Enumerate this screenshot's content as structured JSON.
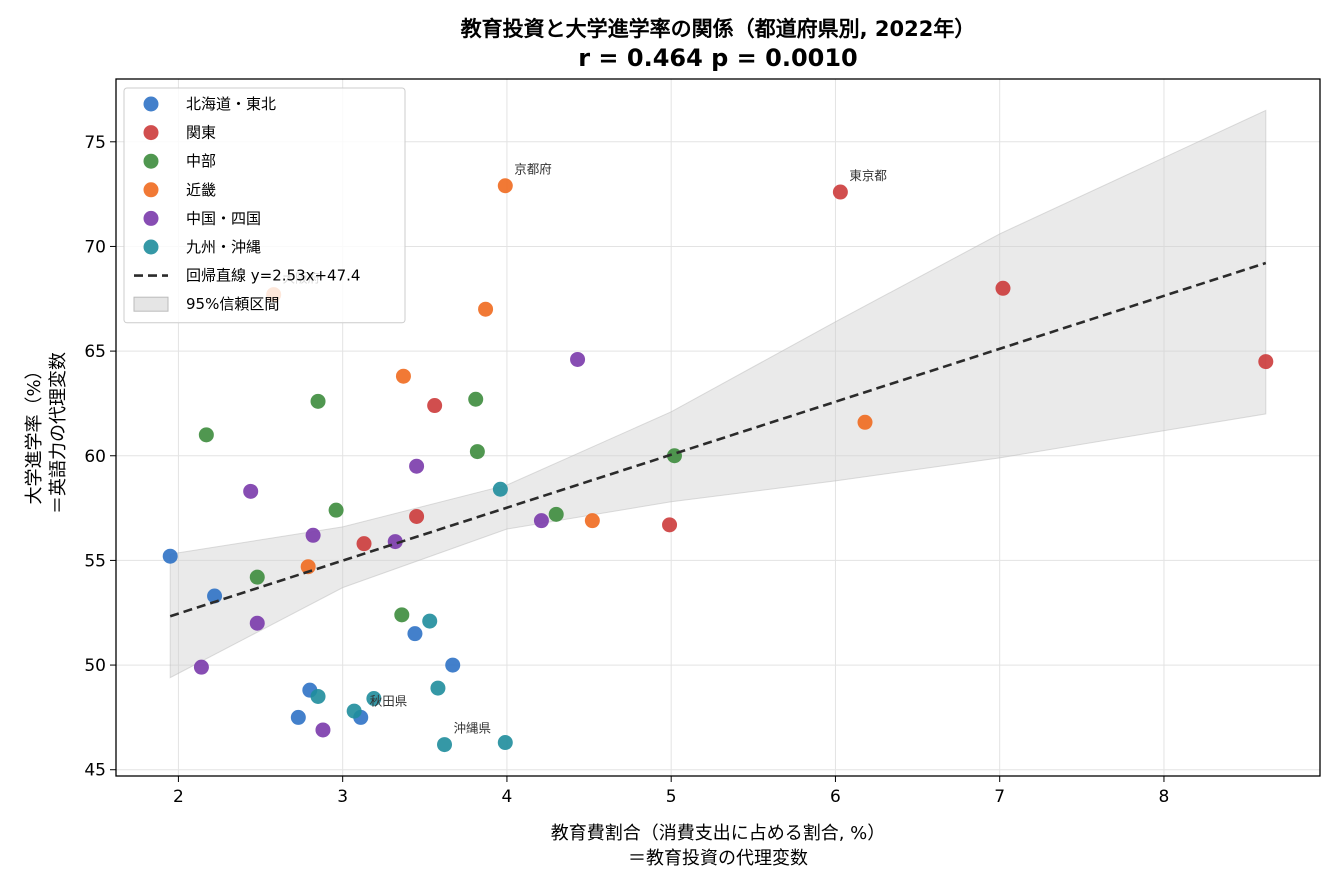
{
  "chart_data": {
    "type": "scatter",
    "title": "教育投資と大学進学率の関係（都道府県別, 2022年）",
    "subtitle": "r = 0.464  p = 0.0010",
    "xlabel": [
      "教育費割合（消費支出に占める割合, %）",
      "＝教育投資の代理変数"
    ],
    "ylabel": [
      "大学進学率（%）",
      "＝英語力の代理変数"
    ],
    "xlim": [
      1.62,
      8.95
    ],
    "ylim": [
      44.7,
      78.0
    ],
    "x_ticks": [
      2,
      3,
      4,
      5,
      6,
      7,
      8
    ],
    "y_ticks": [
      45,
      50,
      55,
      60,
      65,
      70,
      75
    ],
    "grid": true,
    "legend_position": "top-left",
    "series": [
      {
        "name": "北海道・東北",
        "color": "#2f72c5",
        "points": [
          [
            1.95,
            55.2
          ],
          [
            2.22,
            53.3
          ],
          [
            2.73,
            47.5
          ],
          [
            2.8,
            48.8
          ],
          [
            3.11,
            47.5
          ],
          [
            3.44,
            51.5
          ],
          [
            3.67,
            50.0
          ]
        ]
      },
      {
        "name": "関東",
        "color": "#cc3b3b",
        "points": [
          [
            3.13,
            55.8
          ],
          [
            3.45,
            57.1
          ],
          [
            3.56,
            62.4
          ],
          [
            4.99,
            56.7
          ],
          [
            6.03,
            72.6
          ],
          [
            7.02,
            68.0
          ],
          [
            8.62,
            64.5
          ]
        ]
      },
      {
        "name": "中部",
        "color": "#3d8c3d",
        "points": [
          [
            2.17,
            61.0
          ],
          [
            2.48,
            54.2
          ],
          [
            2.85,
            62.6
          ],
          [
            2.96,
            57.4
          ],
          [
            3.36,
            52.4
          ],
          [
            3.81,
            62.7
          ],
          [
            3.82,
            60.2
          ],
          [
            4.3,
            57.2
          ],
          [
            5.02,
            60.0
          ]
        ]
      },
      {
        "name": "近畿",
        "color": "#ef6a1f",
        "points": [
          [
            2.58,
            67.7
          ],
          [
            2.79,
            54.7
          ],
          [
            3.37,
            63.8
          ],
          [
            3.87,
            67.0
          ],
          [
            3.99,
            72.9
          ],
          [
            4.52,
            56.9
          ],
          [
            6.18,
            61.6
          ]
        ]
      },
      {
        "name": "中国・四国",
        "color": "#7a3aab",
        "points": [
          [
            2.14,
            49.9
          ],
          [
            2.44,
            58.3
          ],
          [
            2.48,
            52.0
          ],
          [
            2.82,
            56.2
          ],
          [
            2.88,
            46.9
          ],
          [
            3.32,
            55.9
          ],
          [
            3.45,
            59.5
          ],
          [
            4.21,
            56.9
          ],
          [
            4.43,
            64.6
          ]
        ]
      },
      {
        "name": "九州・沖縄",
        "color": "#1f8d9c",
        "points": [
          [
            2.85,
            48.5
          ],
          [
            3.07,
            47.8
          ],
          [
            3.19,
            48.4
          ],
          [
            3.53,
            52.1
          ],
          [
            3.58,
            48.9
          ],
          [
            3.62,
            46.2
          ],
          [
            3.96,
            58.4
          ],
          [
            3.99,
            46.3
          ]
        ]
      }
    ],
    "regression": {
      "name": "回帰直線 y=2.53x+47.4",
      "slope": 2.53,
      "intercept": 47.4,
      "x_range": [
        1.95,
        8.62
      ],
      "color": "#2b2b2b"
    },
    "confidence_band": {
      "name": "95%信頼区間",
      "x": [
        1.95,
        3.0,
        4.0,
        5.0,
        6.0,
        7.0,
        8.62
      ],
      "lower": [
        49.4,
        53.7,
        56.5,
        57.8,
        58.8,
        59.9,
        62.0
      ],
      "upper": [
        55.3,
        56.6,
        58.6,
        62.1,
        66.4,
        70.6,
        76.5
      ],
      "color": "#cccccc"
    },
    "annotations": [
      {
        "text": "京都府",
        "x": 3.99,
        "y": 72.9
      },
      {
        "text": "東京都",
        "x": 6.03,
        "y": 72.6
      },
      {
        "text": "大阪府",
        "x": 2.58,
        "y": 67.7
      },
      {
        "text": "秋田県",
        "x": 3.11,
        "y": 47.5
      },
      {
        "text": "沖縄県",
        "x": 3.62,
        "y": 46.2
      }
    ]
  }
}
